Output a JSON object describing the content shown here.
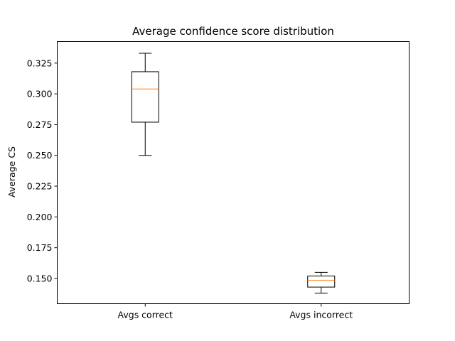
{
  "chart_data": {
    "type": "box",
    "title": "Average confidence score distribution",
    "xlabel": "",
    "ylabel": "Average CS",
    "ylim": [
      0.1295,
      0.3425
    ],
    "yticks": [
      0.15,
      0.175,
      0.2,
      0.225,
      0.25,
      0.275,
      0.3,
      0.325
    ],
    "ytick_labels": [
      "0.150",
      "0.175",
      "0.200",
      "0.225",
      "0.250",
      "0.275",
      "0.300",
      "0.325"
    ],
    "categories": [
      "Avgs correct",
      "Avgs incorrect"
    ],
    "boxes": [
      {
        "category": "Avgs correct",
        "whisker_low": 0.25,
        "q1": 0.277,
        "median": 0.304,
        "q3": 0.318,
        "whisker_high": 0.333
      },
      {
        "category": "Avgs incorrect",
        "whisker_low": 0.138,
        "q1": 0.143,
        "median": 0.1485,
        "q3": 0.152,
        "whisker_high": 0.155
      }
    ],
    "grid": false,
    "colors": {
      "box": "#000000",
      "median": "#ff7f0e",
      "axes": "#000000"
    }
  }
}
